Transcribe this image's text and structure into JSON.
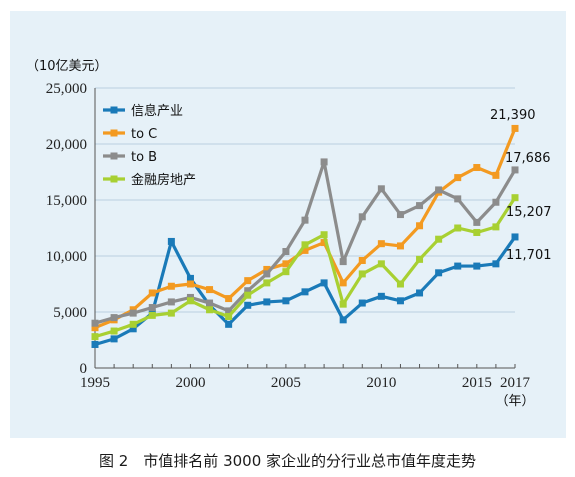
{
  "chart_data": {
    "type": "line",
    "ylabel": "（10亿美元）",
    "xunit": "（年）",
    "x": [
      1995,
      1996,
      1997,
      1998,
      1999,
      2000,
      2001,
      2002,
      2003,
      2004,
      2005,
      2006,
      2007,
      2008,
      2009,
      2010,
      2011,
      2012,
      2013,
      2014,
      2015,
      2016,
      2017
    ],
    "xticks": [
      1995,
      2000,
      2005,
      2010,
      2015,
      2017
    ],
    "yticks": [
      0,
      5000,
      10000,
      15000,
      20000,
      25000
    ],
    "ytick_labels": [
      "0",
      "5,000",
      "10,000",
      "15,000",
      "20,000",
      "25,000"
    ],
    "xlim": [
      1995,
      2017
    ],
    "ylim": [
      0,
      25000
    ],
    "grid": "horizontal",
    "legend_position": "top-left",
    "series": [
      {
        "name": "信息产业",
        "color": "#1a7ab8",
        "values": [
          2100,
          2600,
          3500,
          4900,
          11300,
          8000,
          5600,
          3900,
          5600,
          5900,
          6000,
          6800,
          7600,
          4300,
          5800,
          6400,
          6000,
          6700,
          8500,
          9100,
          9100,
          9300,
          11701
        ]
      },
      {
        "name": "to C",
        "color": "#f39a21",
        "values": [
          3600,
          4300,
          5200,
          6700,
          7300,
          7500,
          7000,
          6200,
          7800,
          8800,
          9300,
          10500,
          11200,
          7600,
          9600,
          11100,
          10900,
          12700,
          15700,
          17000,
          17900,
          17200,
          21390
        ]
      },
      {
        "name": "to B",
        "color": "#8c8c8c",
        "values": [
          4000,
          4500,
          4900,
          5400,
          5900,
          6300,
          5800,
          5100,
          6900,
          8400,
          10400,
          13200,
          18400,
          9500,
          13500,
          16000,
          13700,
          14500,
          15900,
          15100,
          13000,
          14800,
          17686
        ]
      },
      {
        "name": "金融房地产",
        "color": "#a8d032",
        "values": [
          2800,
          3300,
          3900,
          4700,
          4900,
          6000,
          5200,
          4600,
          6500,
          7600,
          8600,
          11000,
          11900,
          5700,
          8400,
          9300,
          7500,
          9700,
          11500,
          12500,
          12100,
          12600,
          15207
        ]
      }
    ],
    "end_labels": [
      "21,390",
      "17,686",
      "15,207",
      "11,701"
    ]
  },
  "caption": "图 2　市值排名前 3000 家企业的分行业总市值年度走势"
}
